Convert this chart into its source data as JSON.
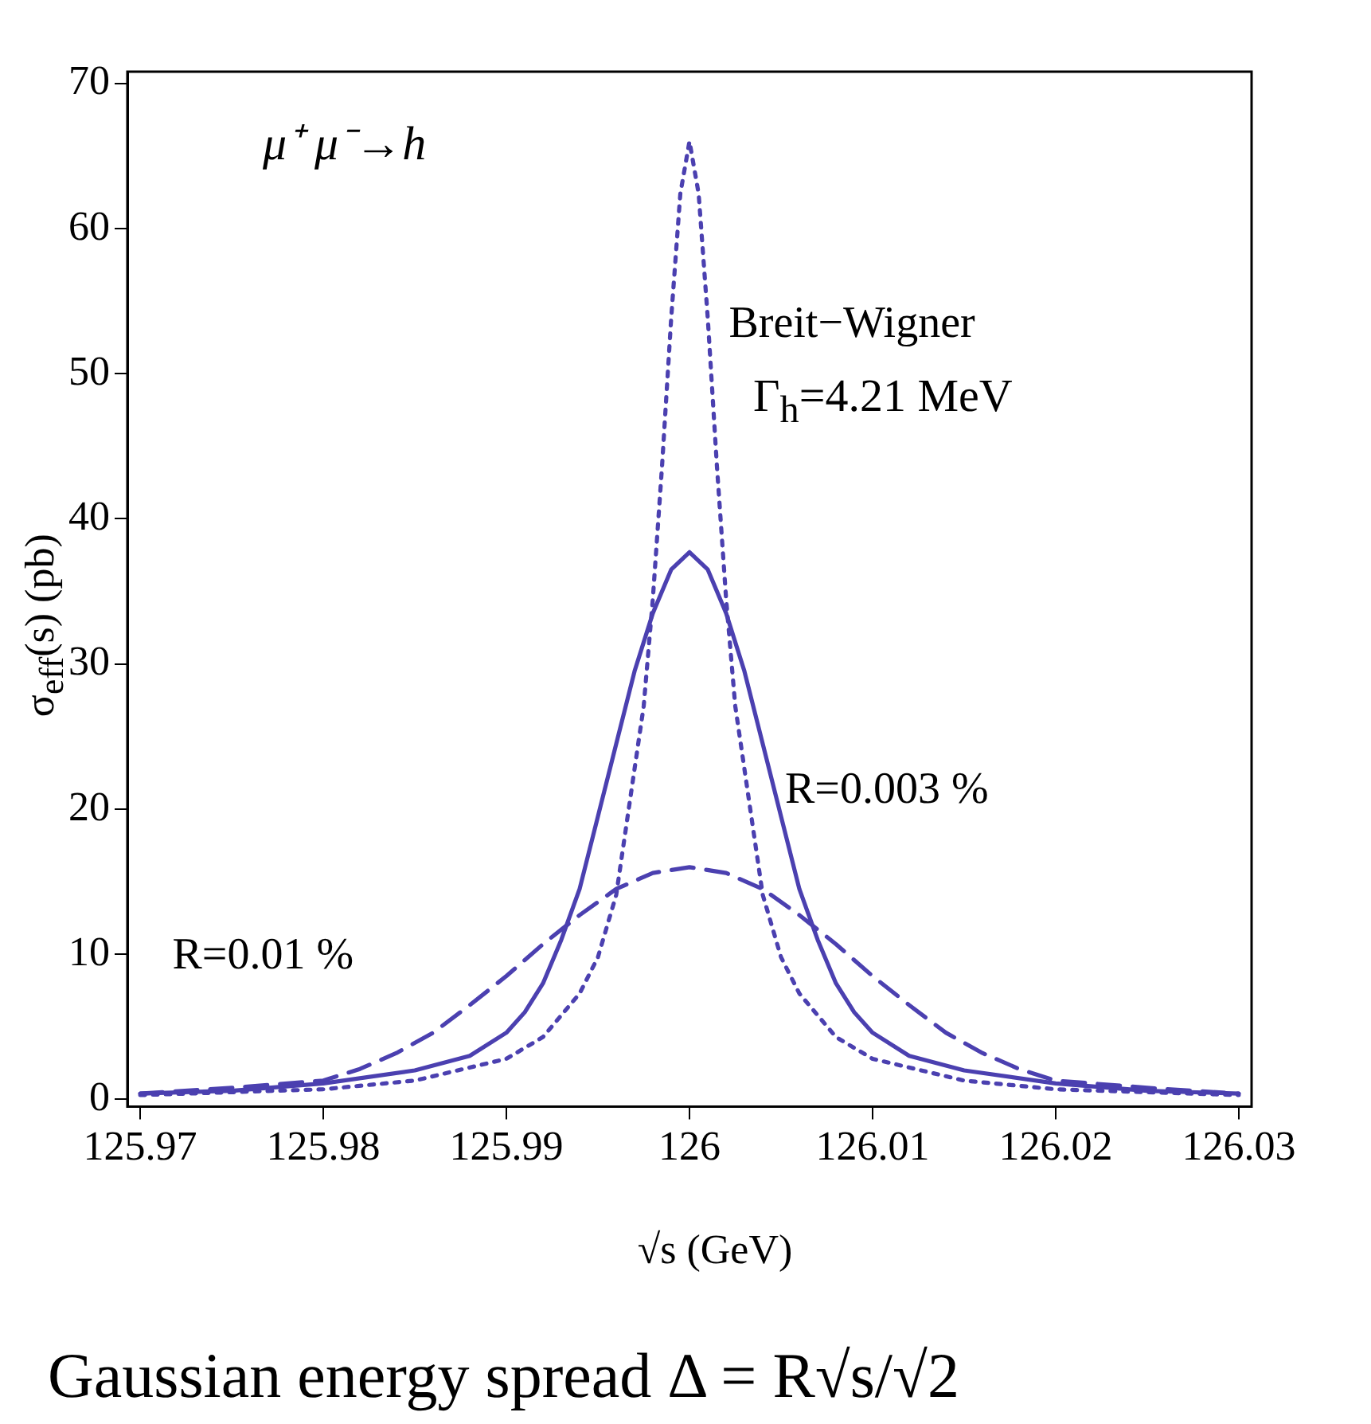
{
  "chart_data": {
    "type": "line",
    "xlabel": "√s (GeV)",
    "ylabel": "σ$_{eff}$(s) (pb)",
    "xlim": [
      125.9693,
      126.0307
    ],
    "ylim": [
      -0.5,
      70.8
    ],
    "xticks": [
      125.97,
      125.98,
      125.99,
      126,
      126.01,
      126.02,
      126.03
    ],
    "yticks": [
      0,
      10,
      20,
      30,
      40,
      50,
      60,
      70
    ],
    "grid": false,
    "legend": false,
    "marker": "none",
    "series": [
      {
        "name": "Breit−Wigner",
        "color": "#4b40b0",
        "line_style": "dotted",
        "x": [
          125.97,
          125.975,
          125.98,
          125.985,
          125.99,
          125.992,
          125.994,
          125.995,
          125.996,
          125.9975,
          125.998,
          125.9985,
          125.999,
          125.9995,
          126,
          126.0005,
          126.001,
          126.0015,
          126.002,
          126.0025,
          126.004,
          126.005,
          126.006,
          126.008,
          126.01,
          126.015,
          126.02,
          126.025,
          126.03
        ],
        "values": [
          0.3,
          0.5,
          0.7,
          1.3,
          2.8,
          4.3,
          7.3,
          9.8,
          14.1,
          27.1,
          34.5,
          43.6,
          53.8,
          62.4,
          66,
          62.4,
          53.8,
          43.6,
          34.5,
          27.1,
          14.1,
          9.8,
          7.3,
          4.3,
          2.8,
          1.3,
          0.7,
          0.5,
          0.3
        ]
      },
      {
        "name": "R=0.003 %",
        "color": "#4b40b0",
        "line_style": "solid",
        "x": [
          125.97,
          125.975,
          125.98,
          125.985,
          125.988,
          125.99,
          125.991,
          125.992,
          125.993,
          125.994,
          125.995,
          125.996,
          125.997,
          125.998,
          125.999,
          126,
          126.001,
          126.002,
          126.003,
          126.004,
          126.005,
          126.006,
          126.007,
          126.008,
          126.009,
          126.01,
          126.012,
          126.015,
          126.02,
          126.025,
          126.03
        ],
        "values": [
          0.4,
          0.6,
          1.1,
          2,
          3,
          4.6,
          6,
          8,
          11,
          14.5,
          19.5,
          24.5,
          29.5,
          33.5,
          36.5,
          37.7,
          36.5,
          33.5,
          29.5,
          24.5,
          19.5,
          14.5,
          11,
          8,
          6,
          4.6,
          3,
          2,
          1.1,
          0.6,
          0.4
        ]
      },
      {
        "name": "R=0.01 %",
        "color": "#4b40b0",
        "line_style": "dashed",
        "x": [
          125.97,
          125.975,
          125.98,
          125.982,
          125.984,
          125.986,
          125.988,
          125.99,
          125.992,
          125.994,
          125.996,
          125.998,
          126,
          126.002,
          126.004,
          126.006,
          126.008,
          126.01,
          126.012,
          126.014,
          126.016,
          126.018,
          126.02,
          126.025,
          126.03
        ],
        "values": [
          0.4,
          0.8,
          1.3,
          2.1,
          3.2,
          4.6,
          6.5,
          8.5,
          10.7,
          12.7,
          14.5,
          15.6,
          16,
          15.6,
          14.5,
          12.7,
          10.7,
          8.5,
          6.5,
          4.6,
          3.2,
          2.1,
          1.3,
          0.8,
          0.4
        ]
      }
    ],
    "annotations": [
      "μ⁺ μ⁻→h",
      "Γ$_{h}$=4.21 MeV",
      "Gaussian energy spread Δ = R√s/√2"
    ]
  }
}
